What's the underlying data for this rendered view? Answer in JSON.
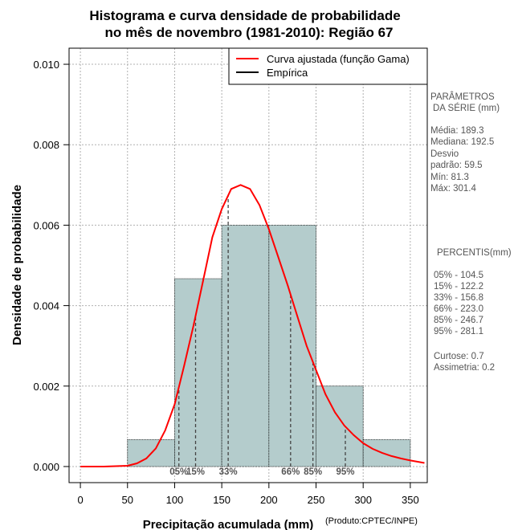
{
  "chart_data": {
    "type": "bar",
    "title_line1": "Histograma e curva densidade de probabilidade",
    "title_line2": "no mês de novembro (1981-2010): Região 67",
    "xlabel": "Precipitação acumulada (mm)",
    "ylabel": "Densidade de probabilidade",
    "xlim": [
      -12,
      368
    ],
    "ylim": [
      -0.0004,
      0.0104
    ],
    "x_ticks": [
      0,
      50,
      100,
      150,
      200,
      250,
      300,
      350
    ],
    "y_ticks": [
      0.0,
      0.002,
      0.004,
      0.006,
      0.008,
      0.01
    ],
    "y_tick_labels": [
      "0.000",
      "0.002",
      "0.004",
      "0.006",
      "0.008",
      "0.010"
    ],
    "grid": true,
    "bins": [
      {
        "from": 50,
        "to": 100,
        "density": 0.00067
      },
      {
        "from": 100,
        "to": 150,
        "density": 0.00467
      },
      {
        "from": 150,
        "to": 200,
        "density": 0.006
      },
      {
        "from": 200,
        "to": 250,
        "density": 0.006
      },
      {
        "from": 250,
        "to": 300,
        "density": 0.002
      },
      {
        "from": 300,
        "to": 350,
        "density": 0.00067
      }
    ],
    "bar_color": "#b4cccc",
    "curve": {
      "name": "Curva ajustada (função Gama)",
      "color": "#ff0000",
      "x": [
        0,
        25,
        50,
        60,
        70,
        80,
        90,
        100,
        110,
        120,
        130,
        140,
        150,
        160,
        170,
        180,
        190,
        200,
        210,
        220,
        230,
        240,
        250,
        260,
        270,
        280,
        290,
        300,
        310,
        320,
        330,
        340,
        350,
        365
      ],
      "y": [
        0,
        0,
        2e-05,
        8e-05,
        0.0002,
        0.00045,
        0.0009,
        0.00155,
        0.0025,
        0.0035,
        0.0046,
        0.0057,
        0.0064,
        0.0069,
        0.007,
        0.0069,
        0.0065,
        0.0059,
        0.0052,
        0.0045,
        0.00375,
        0.003,
        0.0024,
        0.0018,
        0.00135,
        0.00102,
        0.00078,
        0.00058,
        0.00044,
        0.00034,
        0.00026,
        0.0002,
        0.00015,
        9e-05
      ]
    },
    "empirical_name": "Empírica",
    "percentile_lines": [
      {
        "label": "05%",
        "x": 104.5
      },
      {
        "label": "15%",
        "x": 122.2
      },
      {
        "label": "33%",
        "x": 156.8
      },
      {
        "label": "66%",
        "x": 223.0
      },
      {
        "label": "85%",
        "x": 246.7
      },
      {
        "label": "95%",
        "x": 281.1
      }
    ],
    "legend_position": "top-right"
  },
  "stats_panel": {
    "params_title_1": "PARÂMETROS",
    "params_title_2": "DA SÉRIE (mm)",
    "media": "Média:  189.3",
    "mediana": "Mediana:  192.5",
    "desvio_1": "Desvio",
    "desvio_2": "padrão:  59.5",
    "min": "Mín:  81.3",
    "max": "Máx:  301.4",
    "percentis_title": "PERCENTIS(mm)",
    "percentis": [
      "05% -  104.5",
      "15% -  122.2",
      "33% -  156.8",
      "66% -  223.0",
      "85% -  246.7",
      "95% -  281.1"
    ],
    "curtose": "Curtose:  0.7",
    "assimetria": "Assimetria:  0.2"
  },
  "credit": "(Produto:CPTEC/INPE)"
}
